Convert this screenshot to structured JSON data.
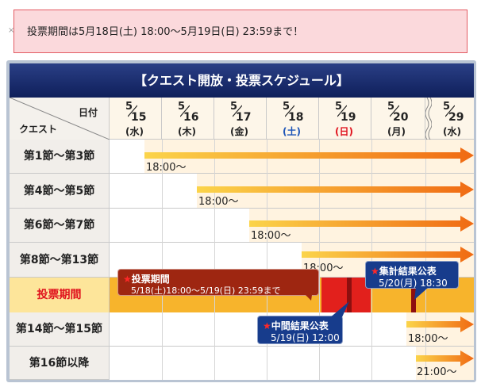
{
  "notice": "投票期間は5月18日(土) 18:00～5月19日(日) 23:59まで！",
  "title": "【クエスト開放・投票スケジュール】",
  "header": {
    "date_label": "日付",
    "quest_label": "クエスト"
  },
  "dates": [
    {
      "month": "5",
      "day": "15",
      "weekday": "(水)",
      "weekday_color": "#222222"
    },
    {
      "month": "5",
      "day": "16",
      "weekday": "(木)",
      "weekday_color": "#222222"
    },
    {
      "month": "5",
      "day": "17",
      "weekday": "(金)",
      "weekday_color": "#222222"
    },
    {
      "month": "5",
      "day": "18",
      "weekday": "(土)",
      "weekday_color": "#1d55b8"
    },
    {
      "month": "5",
      "day": "19",
      "weekday": "(日)",
      "weekday_color": "#e0121d"
    },
    {
      "month": "5",
      "day": "20",
      "weekday": "(月)",
      "weekday_color": "#222222"
    },
    {
      "month": "5",
      "day": "29",
      "weekday": "(水)",
      "weekday_color": "#222222"
    }
  ],
  "rows": [
    {
      "label": "第1節～第3節",
      "start": "18:00～"
    },
    {
      "label": "第4節～第5節",
      "start": "18:00～"
    },
    {
      "label": "第6節～第7節",
      "start": "18:00～"
    },
    {
      "label": "第8節～第13節",
      "start": "18:00～"
    },
    {
      "label": "投票期間",
      "start": ""
    },
    {
      "label": "第14節～第15節",
      "start": "18:00～"
    },
    {
      "label": "第16節以降",
      "start": "21:00～"
    }
  ],
  "callouts": {
    "vote": {
      "title": "投票期間",
      "detail": "5/18(土)18:00～5/19(日) 23:59まで"
    },
    "mid": {
      "title": "中間結果公表",
      "detail": "5/19(日) 12:00"
    },
    "result": {
      "title": "集計結果公表",
      "detail": "5/20(月) 18:30"
    }
  },
  "colors": {
    "title_bg": "#1a2d6e",
    "arrow": "#f58220",
    "vote_band": "#f7b42c",
    "vote_red": "#e2201c",
    "callout_blue": "#173c8c",
    "callout_red": "#9e2611"
  }
}
